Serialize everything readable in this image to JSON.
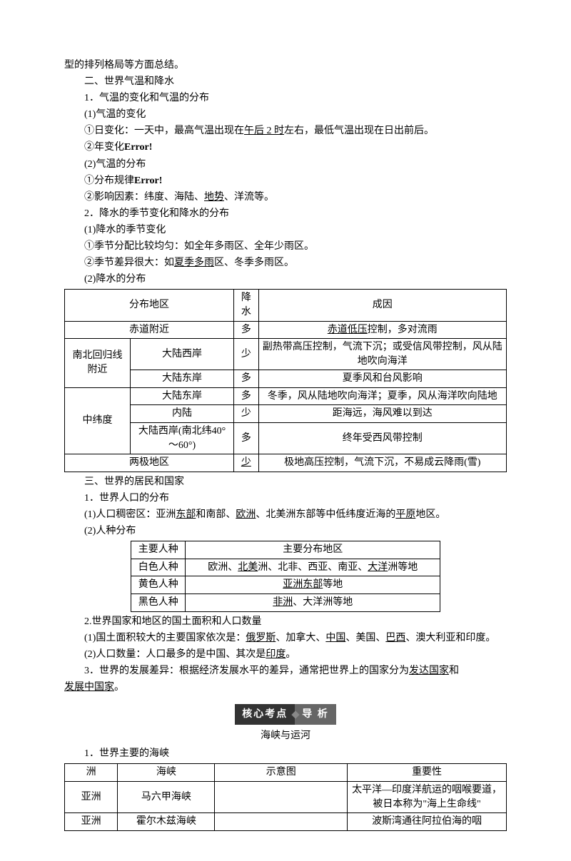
{
  "lines": {
    "l1": "型的排列格局等方面总结。",
    "l2": "二、世界气温和降水",
    "l3": "1．气温的变化和气温的分布",
    "l4": "(1)气温的变化",
    "l5_a": "①日变化：一天中，最高气温出现在",
    "l5_u": "午后 2 时",
    "l5_b": "左右，最低气温出现在日出前后。",
    "l6_a": "②年变化",
    "l6_b": "Error!",
    "l7": "(2)气温的分布",
    "l8_a": "①分布规律",
    "l8_b": "Error!",
    "l9_a": "②影响因素：纬度、海陆、",
    "l9_u": "地势",
    "l9_b": "、洋流等。",
    "l10": "2．降水的季节变化和降水的分布",
    "l11": "(1)降水的季节变化",
    "l12": "①季节分配比较均匀：如全年多雨区、全年少雨区。",
    "l13_a": "②季节差异很大：如",
    "l13_u": "夏季多雨",
    "l13_b": "区、冬季多雨区。",
    "l14": "(2)降水的分布"
  },
  "table1": {
    "headers": [
      "分布地区",
      "降水",
      "成因"
    ],
    "rows": [
      {
        "c1": "赤道附近",
        "span1": 2,
        "c2": "多",
        "c3_pre": "",
        "c3_u": "赤道低压",
        "c3_post": "控制，多对流雨"
      },
      {
        "c0": "南北回归线附近",
        "c1": "大陆西岸",
        "c2": "少",
        "c3": "副热带高压控制，气流下沉；或受信风带控制，风从陆地吹向海洋"
      },
      {
        "c1": "大陆东岸",
        "c2": "多",
        "c3": "夏季风和台风影响"
      },
      {
        "c0": "中纬度",
        "c1": "大陆东岸",
        "c2": "多",
        "c3": "冬季，风从陆地吹向海洋；夏季，风从海洋吹向陆地"
      },
      {
        "c1": "内陆",
        "c2": "少",
        "c3": "距海远，海风难以到达"
      },
      {
        "c1": "大陆西岸(南北纬40°～60°)",
        "c2": "多",
        "c3": "终年受西风带控制"
      },
      {
        "c1": "两极地区",
        "span1": 2,
        "c2_u": "少",
        "c3": "极地高压控制，气流下沉，不易成云降雨(雪)"
      }
    ]
  },
  "lines2": {
    "l15": "三、世界的居民和国家",
    "l16": "1．世界人口的分布",
    "l17_a": "(1)人口稠密区：亚洲",
    "l17_u1": "东部",
    "l17_b": "和南部、",
    "l17_u2": "欧洲",
    "l17_c": "、北美洲东部等中低纬度近海的",
    "l17_u3": "平原",
    "l17_d": "地区。",
    "l18": "(2)人种分布"
  },
  "table2": {
    "headers": [
      "主要人种",
      "主要分布地区"
    ],
    "rows": [
      {
        "c1": "白色人种",
        "c2_parts": [
          "欧洲、",
          {
            "u": "北美"
          },
          "洲、北非、西亚、南亚、",
          {
            "u": "大洋"
          },
          "洲等地"
        ]
      },
      {
        "c1": "黄色人种",
        "c2_parts": [
          {
            "u": "亚洲东部"
          },
          "等地"
        ]
      },
      {
        "c1": "黑色人种",
        "c2_parts": [
          {
            "u": "非洲"
          },
          "、大洋洲等地"
        ]
      }
    ]
  },
  "lines3": {
    "l19": "2.世界国家和地区的国土面积和人口数量",
    "l20_a": "(1)国土面积较大的主要国家依次是：",
    "l20_u1": "俄罗斯",
    "l20_b": "、加拿大、",
    "l20_u2": "中国",
    "l20_c": "、美国、",
    "l20_u3": "巴西",
    "l20_d": "、澳大利亚和印度。",
    "l21_a": "(2)人口数量：人口最多的是中国、其次是",
    "l21_u": "印度",
    "l21_b": "。",
    "l22_a": "3．世界的发展差异：根据经济发展水平的差异，通常把世界上的国家分为",
    "l22_u1": "发达国家",
    "l22_b": "和",
    "l22_u2": "发展中国家",
    "l22_c": "。"
  },
  "banner": {
    "left": "核心考点",
    "right": "导 析"
  },
  "subtitle": "海峡与运河",
  "l23": "1．世界主要的海峡",
  "table3": {
    "headers": [
      "洲",
      "海峡",
      "示意图",
      "重要性"
    ],
    "rows": [
      {
        "c1": "亚洲",
        "c2": "马六甲海峡",
        "c3": "",
        "c4": "太平洋—印度洋航运的咽喉要道，被日本称为\"海上生命线\""
      },
      {
        "c1": "亚洲",
        "c2": "霍尔木兹海峡",
        "c3": "",
        "c4": "波斯湾通往阿拉伯海的咽"
      }
    ]
  }
}
